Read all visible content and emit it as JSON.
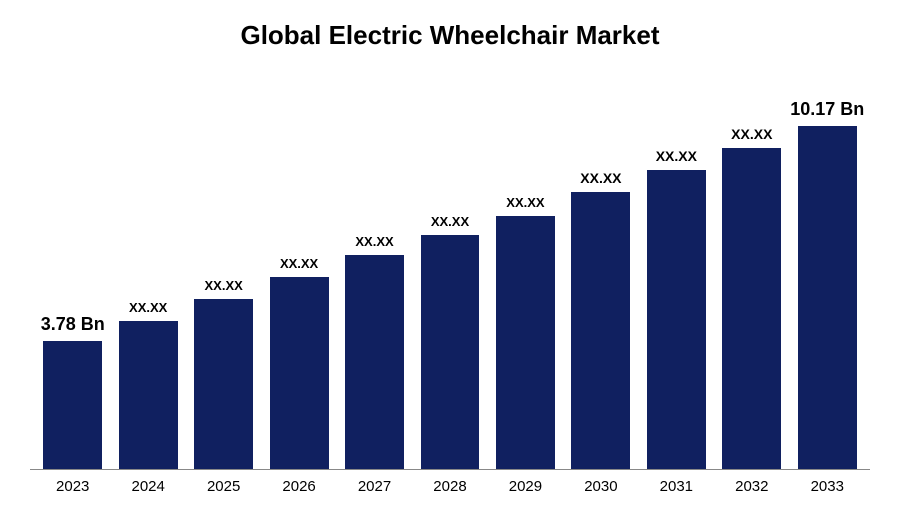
{
  "chart": {
    "type": "bar",
    "title": "Global Electric Wheelchair Market",
    "title_fontsize": 26,
    "title_color": "#000000",
    "background_color": "#ffffff",
    "categories": [
      "2023",
      "2024",
      "2025",
      "2026",
      "2027",
      "2028",
      "2029",
      "2030",
      "2031",
      "2032",
      "2033"
    ],
    "bar_labels": [
      "3.78 Bn",
      "XX.XX",
      "XX.XX",
      "XX.XX",
      "XX.XX",
      "XX.XX",
      "XX.XX",
      "XX.XX",
      "XX.XX",
      "XX.XX",
      "10.17 Bn"
    ],
    "bar_label_fontsize": [
      18,
      13,
      13,
      13,
      13,
      13,
      13,
      14,
      14,
      14,
      18
    ],
    "bar_label_weight": "700",
    "values": [
      3.78,
      4.4,
      5.05,
      5.7,
      6.35,
      6.95,
      7.5,
      8.2,
      8.85,
      9.5,
      10.17
    ],
    "ylim": [
      0,
      11.5
    ],
    "bar_color": "#102060",
    "bar_width_pct": 78,
    "axis_line_color": "#888888",
    "tick_fontsize": 15,
    "tick_color": "#000000"
  }
}
